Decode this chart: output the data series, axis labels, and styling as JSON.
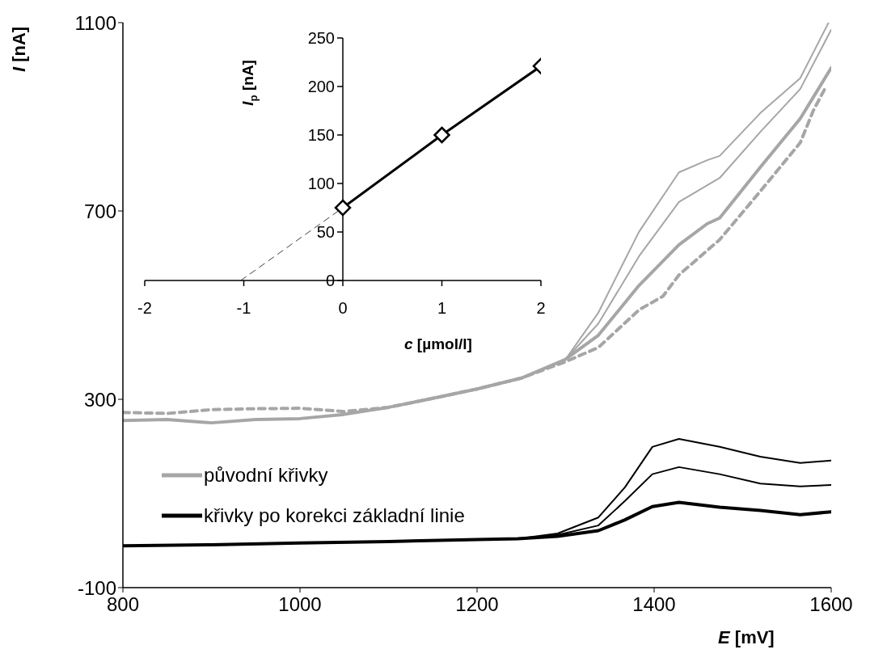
{
  "chart_data": [
    {
      "type": "line",
      "xlabel": "E [mV]",
      "ylabel": "I [nA]",
      "xlim": [
        800,
        1600
      ],
      "xticks": [
        800,
        1000,
        1200,
        1400,
        1600
      ],
      "ylim": [
        -100,
        1100
      ],
      "yticks": [
        -100,
        300,
        700,
        1100
      ],
      "legend": "left",
      "series": [
        {
          "color": "#a6a6a6",
          "x": [
            800,
            850,
            900,
            950,
            1000,
            1050,
            1100,
            1150,
            1200,
            1250,
            1300,
            1337,
            1383,
            1428,
            1460,
            1474,
            1520,
            1565,
            1597
          ],
          "values": [
            255,
            257,
            250,
            257,
            259,
            268,
            283,
            302,
            322,
            345,
            385,
            484,
            656,
            782,
            808,
            817,
            908,
            982,
            1100
          ]
        },
        {
          "color": "#a6a6a6",
          "x": [
            800,
            850,
            900,
            950,
            1000,
            1050,
            1100,
            1150,
            1200,
            1250,
            1300,
            1337,
            1383,
            1428,
            1474,
            1520,
            1565,
            1600
          ],
          "values": [
            255,
            257,
            250,
            257,
            259,
            268,
            283,
            302,
            322,
            345,
            385,
            461,
            604,
            719,
            770,
            868,
            959,
            1085
          ]
        },
        {
          "color": "#a6a6a6",
          "line_style": "dashed",
          "x": [
            800,
            850,
            900,
            950,
            1000,
            1050,
            1100,
            1150,
            1200,
            1250,
            1300,
            1337,
            1383,
            1410,
            1428,
            1474,
            1520,
            1565,
            1580,
            1593
          ],
          "values": [
            272,
            270,
            278,
            280,
            281,
            274,
            283,
            302,
            322,
            345,
            380,
            410,
            490,
            519,
            564,
            639,
            742,
            845,
            914,
            960
          ]
        },
        {
          "name": "původní křivky",
          "color": "#a6a6a6",
          "x": [
            800,
            850,
            900,
            950,
            1000,
            1050,
            1100,
            1150,
            1200,
            1250,
            1300,
            1337,
            1383,
            1428,
            1460,
            1474,
            1520,
            1565,
            1600
          ],
          "values": [
            255,
            257,
            250,
            257,
            259,
            268,
            283,
            302,
            322,
            345,
            385,
            436,
            542,
            628,
            673,
            685,
            793,
            896,
            1004
          ]
        },
        {
          "color": "#000000",
          "x": [
            800,
            900,
            1000,
            1100,
            1200,
            1246,
            1291,
            1337,
            1367,
            1398,
            1428,
            1474,
            1520,
            1565,
            1600
          ],
          "values": [
            -11,
            -9,
            -5,
            -2,
            2,
            4,
            15,
            49,
            113,
            199,
            216,
            199,
            178,
            165,
            170
          ]
        },
        {
          "color": "#000000",
          "x": [
            800,
            900,
            1000,
            1100,
            1200,
            1246,
            1291,
            1337,
            1367,
            1398,
            1428,
            1474,
            1520,
            1565,
            1600
          ],
          "values": [
            -11,
            -9,
            -5,
            -2,
            2,
            4,
            12,
            32,
            84,
            141,
            156,
            141,
            121,
            115,
            118
          ]
        },
        {
          "name": "křivky po korekci základní linie",
          "color": "#000000",
          "x": [
            800,
            900,
            1000,
            1100,
            1200,
            1246,
            1291,
            1337,
            1367,
            1398,
            1428,
            1474,
            1520,
            1565,
            1600
          ],
          "values": [
            -11,
            -9,
            -5,
            -2,
            2,
            4,
            9,
            21,
            44,
            72,
            81,
            71,
            64,
            55,
            61
          ]
        }
      ]
    },
    {
      "type": "line",
      "xlabel": "c [µmol/l]",
      "ylabel": "I$_{p}$ [nA]",
      "xlim": [
        -2,
        2
      ],
      "xticks": [
        -2,
        -1,
        0,
        1,
        2
      ],
      "ylim": [
        0,
        250
      ],
      "yticks": [
        0,
        50,
        100,
        150,
        200,
        250
      ],
      "series": [
        {
          "color": "#000000",
          "marker": "diamond",
          "x": [
            0,
            1,
            2
          ],
          "values": [
            75,
            150,
            221
          ]
        },
        {
          "color": "#404040",
          "marker": "none",
          "line_style": "dashed",
          "x": [
            -1.03,
            0
          ],
          "values": [
            0,
            75
          ]
        }
      ]
    }
  ]
}
